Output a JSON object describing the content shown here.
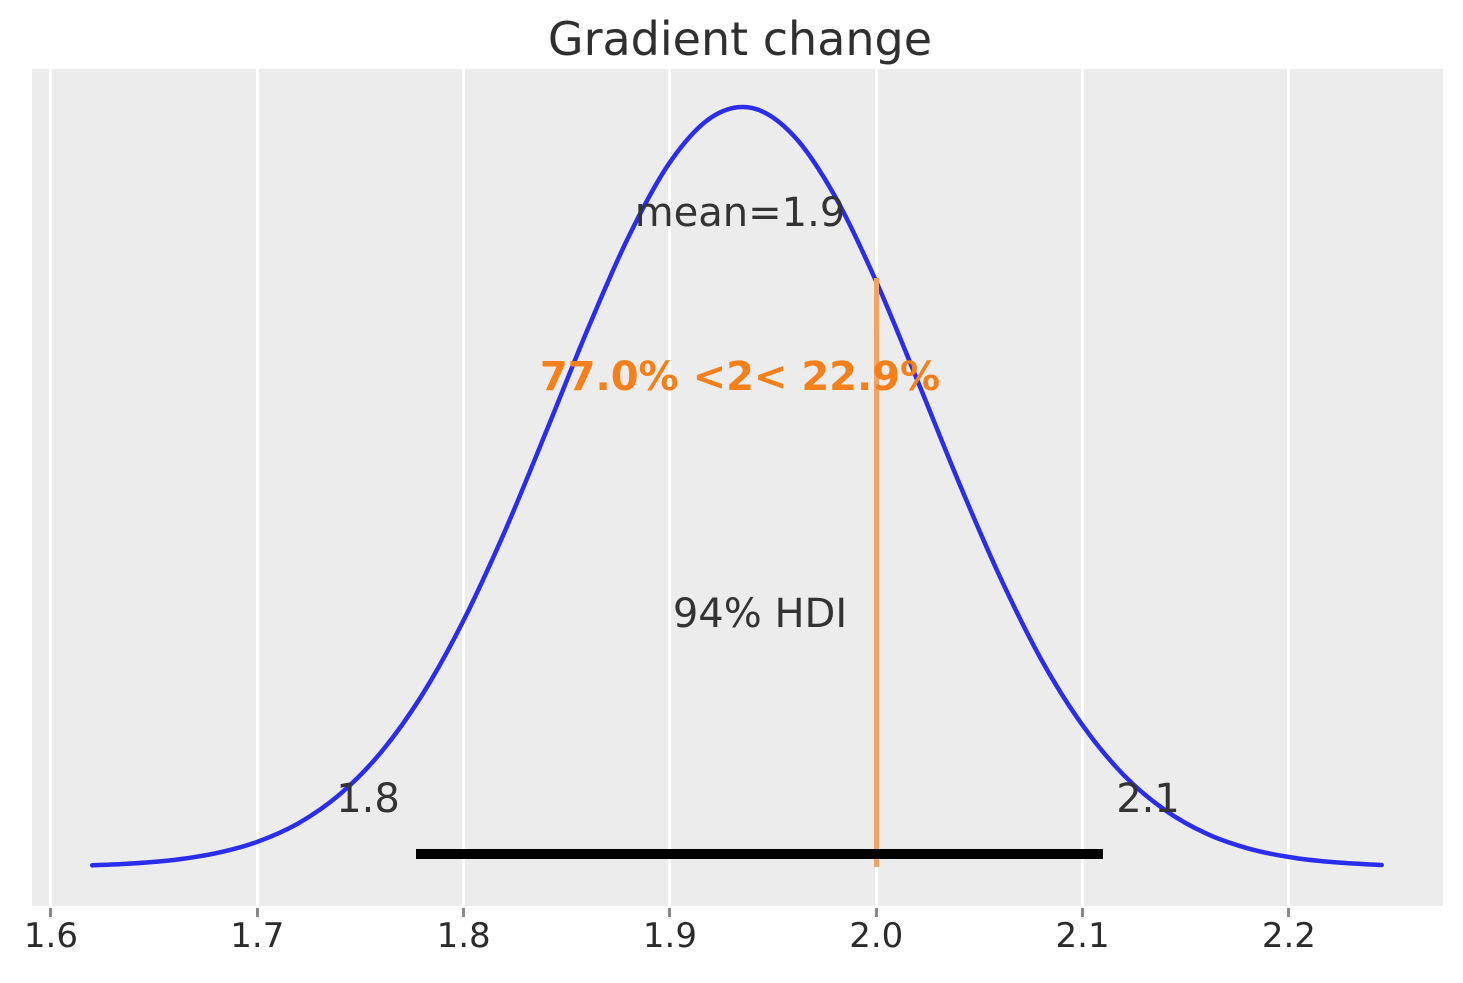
{
  "title": "Gradient change",
  "colors": {
    "curve": "#2a2eec",
    "ref_line": "#f6a360",
    "ref_text": "#f5801a",
    "hdi_bar": "#000000",
    "plot_bg": "#ececec",
    "grid": "#ffffff",
    "text": "#333333",
    "tick": "#8a8a8a"
  },
  "chart_data": {
    "type": "area",
    "subtype": "posterior-density-kde",
    "title": "Gradient change",
    "xlabel": "",
    "ylabel": "",
    "legend_position": "none",
    "axes": {
      "xlim": [
        1.5908,
        2.2747
      ],
      "ylim": [
        0,
        1.1
      ],
      "grid": "vertical-white-on-grey",
      "x_ticks": [
        1.6,
        1.7,
        1.8,
        1.9,
        2.0,
        2.1,
        2.2
      ],
      "x_tick_labels": [
        "1.6",
        "1.7",
        "1.8",
        "1.9",
        "2.0",
        "2.1",
        "2.2"
      ]
    },
    "mean": 1.9,
    "hdi": {
      "probability": "94%",
      "lower": 1.777,
      "upper": 2.11,
      "lower_label": "1.8",
      "upper_label": "2.1"
    },
    "ref_val": 2.0,
    "ref_val_proportions": {
      "below": "77.0%",
      "above": "22.9%"
    },
    "annotations": {
      "mean_label": "mean=1.9",
      "hdi_label": "94% HDI",
      "ref_val_label": "77.0% <2< 22.9%"
    },
    "density": {
      "x": [
        1.62,
        1.64,
        1.66,
        1.68,
        1.7,
        1.72,
        1.74,
        1.76,
        1.78,
        1.8,
        1.82,
        1.84,
        1.86,
        1.88,
        1.9,
        1.92,
        1.94,
        1.96,
        1.98,
        2.0,
        2.02,
        2.04,
        2.06,
        2.08,
        2.1,
        2.12,
        2.14,
        2.16,
        2.18,
        2.2,
        2.22,
        2.24,
        2.245
      ],
      "y": [
        0.0062,
        0.0086,
        0.0133,
        0.022,
        0.0369,
        0.0614,
        0.0992,
        0.1544,
        0.23,
        0.3273,
        0.4441,
        0.5744,
        0.7078,
        0.8303,
        0.9275,
        0.9862,
        0.9985,
        0.9623,
        0.883,
        0.7713,
        0.6413,
        0.5083,
        0.3841,
        0.2758,
        0.1896,
        0.1243,
        0.0785,
        0.0477,
        0.0285,
        0.017,
        0.0106,
        0.0072,
        0.0066
      ]
    }
  }
}
